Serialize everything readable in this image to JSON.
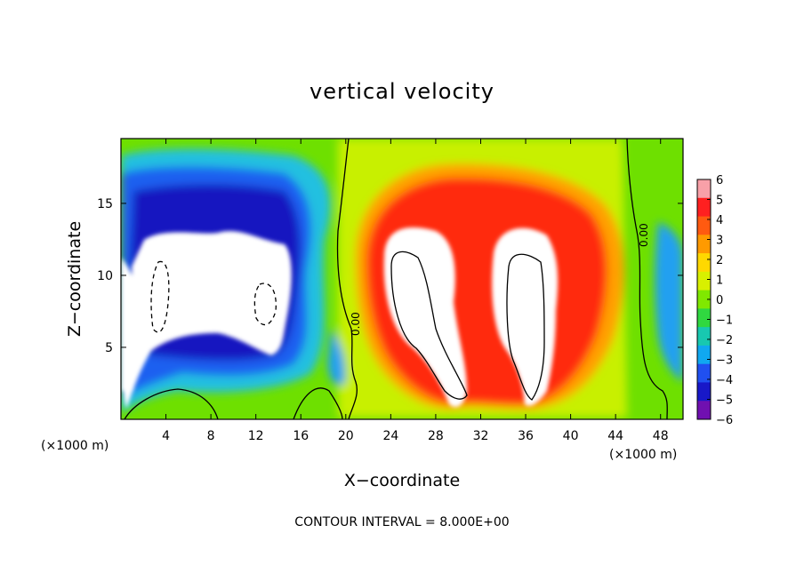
{
  "chart_data": {
    "type": "heatmap",
    "title": "vertical velocity",
    "xlabel": "X−coordinate",
    "ylabel": "Z−coordinate",
    "x_unit_left": "(×1000 m)",
    "x_unit_right": "(×1000 m)",
    "footer": "CONTOUR INTERVAL = 8.000E+00",
    "xlim": [
      0,
      50
    ],
    "ylim": [
      0,
      19.5
    ],
    "xticks": [
      4,
      8,
      12,
      16,
      20,
      24,
      28,
      32,
      36,
      40,
      44,
      48
    ],
    "xtick_labels": [
      "4",
      "8",
      "12",
      "16",
      "20",
      "24",
      "28",
      "32",
      "36",
      "40",
      "44",
      "48"
    ],
    "yticks": [
      5,
      10,
      15
    ],
    "ytick_labels": [
      "5",
      "10",
      "15"
    ],
    "colorbar": {
      "min": -6,
      "max": 6,
      "ticks": [
        6,
        5,
        4,
        3,
        2,
        1,
        0,
        -1,
        -2,
        -3,
        -4,
        -5,
        -6
      ],
      "tick_labels": [
        "6",
        "5",
        "4",
        "3",
        "2",
        "1",
        "0",
        "−1",
        "−2",
        "−3",
        "−4",
        "−5",
        "−6"
      ],
      "colors": [
        "#f8a0a8",
        "#ff2020",
        "#ff5a10",
        "#ff9a00",
        "#ffd800",
        "#d8f000",
        "#80e800",
        "#30d840",
        "#18c8b0",
        "#10a8f0",
        "#2050f0",
        "#1818c8",
        "#7010b0"
      ]
    },
    "contour_labels": [
      "0.00",
      "0.00"
    ],
    "features": [
      {
        "kind": "downdraft",
        "x": 8,
        "z": 10,
        "peak": -6,
        "note": "saturated beyond color scale"
      },
      {
        "kind": "updraft",
        "x": 27,
        "z": 9,
        "peak": 6,
        "note": "saturated beyond color scale"
      },
      {
        "kind": "updraft",
        "x": 36,
        "z": 9,
        "peak": 6,
        "note": "saturated beyond color scale"
      },
      {
        "kind": "downdraft",
        "x": 2,
        "z": 6,
        "peak": -6
      },
      {
        "kind": "weak downdraft",
        "x": 49,
        "z": 6,
        "peak": -3
      }
    ]
  }
}
